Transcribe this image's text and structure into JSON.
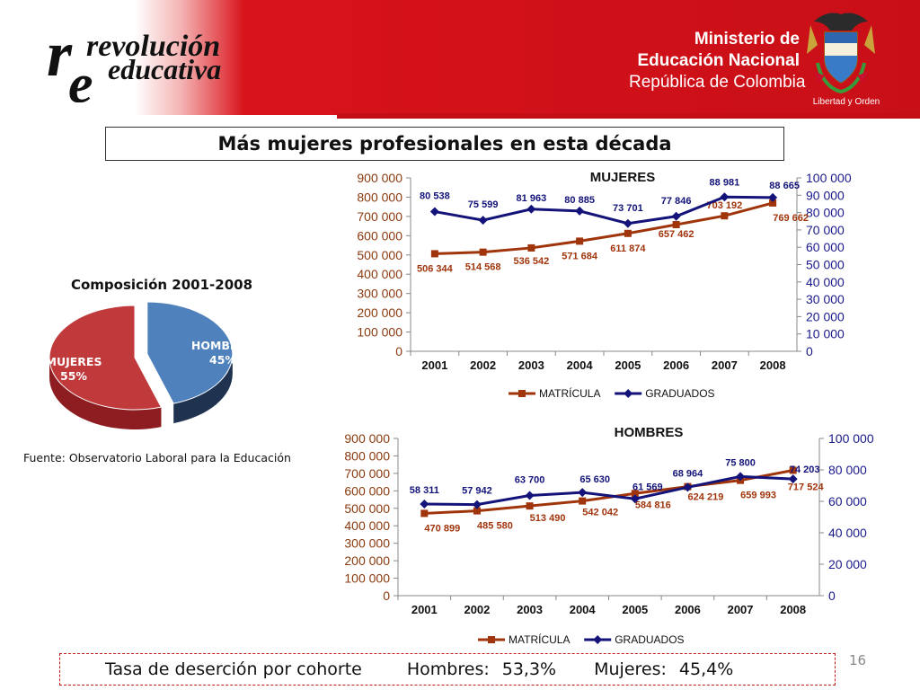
{
  "header": {
    "logo_name": "revolution-educativa-logo",
    "logo_lines": [
      "revolución",
      "educativa"
    ],
    "ministry": [
      "Ministerio de",
      "Educación Nacional",
      "República de Colombia"
    ],
    "motto": "Libertad y Orden",
    "colors": {
      "accent": "#c80f17"
    }
  },
  "title": "Más mujeres profesionales en esta década",
  "pie": {
    "title": "Composición 2001-2008",
    "slices": [
      {
        "label": "MUJERES",
        "pct_label": "55%",
        "value": 55,
        "color": "#c0393b",
        "side": "#8e1d22"
      },
      {
        "label": "HOMBRES",
        "pct_label": "45%",
        "value": 45,
        "color": "#4f81bd",
        "side": "#1f3350"
      }
    ]
  },
  "source": "Fuente: Observatorio Laboral para la Educación",
  "chart_data": [
    {
      "type": "line",
      "title": "MUJERES",
      "categories": [
        "2001",
        "2002",
        "2003",
        "2004",
        "2005",
        "2006",
        "2007",
        "2008"
      ],
      "y_left": {
        "min": 0,
        "max": 900000,
        "step": 100000,
        "ticks": [
          "0",
          "100 000",
          "200 000",
          "300 000",
          "400 000",
          "500 000",
          "600 000",
          "700 000",
          "800 000",
          "900 000"
        ],
        "color": "#8b3a0f"
      },
      "y_right": {
        "min": 0,
        "max": 100000,
        "step": 10000,
        "ticks": [
          "0",
          "10 000",
          "20 000",
          "30 000",
          "40 000",
          "50 000",
          "60 000",
          "70 000",
          "80 000",
          "90 000",
          "100 000"
        ],
        "color": "#1a1a8c"
      },
      "series": [
        {
          "name": "MATRÍCULA",
          "axis": "left",
          "color": "#a0350c",
          "marker": "square",
          "values": [
            506344,
            514568,
            536542,
            571684,
            611874,
            657462,
            703192,
            769662
          ],
          "labels": [
            "506 344",
            "514 568",
            "536 542",
            "571 684",
            "611 874",
            "657 462",
            "703 192",
            "769 662"
          ]
        },
        {
          "name": "GRADUADOS",
          "axis": "right",
          "color": "#13137a",
          "marker": "diamond",
          "values": [
            80538,
            75599,
            81963,
            80885,
            73701,
            77846,
            88981,
            88665
          ],
          "labels": [
            "80 538",
            "75 599",
            "81 963",
            "80 885",
            "73 701",
            "77 846",
            "88 981",
            "88 665"
          ]
        }
      ],
      "legend": "bottom"
    },
    {
      "type": "line",
      "title": "HOMBRES",
      "categories": [
        "2001",
        "2002",
        "2003",
        "2004",
        "2005",
        "2006",
        "2007",
        "2008"
      ],
      "y_left": {
        "min": 0,
        "max": 900000,
        "step": 100000,
        "ticks": [
          "0",
          "100 000",
          "200 000",
          "300 000",
          "400 000",
          "500 000",
          "600 000",
          "700 000",
          "800 000",
          "900 000"
        ],
        "color": "#8b3a0f"
      },
      "y_right": {
        "min": 0,
        "max": 100000,
        "step": 20000,
        "ticks": [
          "0",
          "20 000",
          "40 000",
          "60 000",
          "80 000",
          "100 000"
        ],
        "color": "#1a1a8c"
      },
      "series": [
        {
          "name": "MATRÍCULA",
          "axis": "left",
          "color": "#a0350c",
          "marker": "square",
          "values": [
            470899,
            485580,
            513490,
            542042,
            584816,
            624219,
            659993,
            717524
          ],
          "labels": [
            "470 899",
            "485 580",
            "513 490",
            "542 042",
            "584 816",
            "624 219",
            "659 993",
            "717 524"
          ]
        },
        {
          "name": "GRADUADOS",
          "axis": "right",
          "color": "#13137a",
          "marker": "diamond",
          "values": [
            58311,
            57942,
            63700,
            65630,
            61569,
            68964,
            75800,
            74203
          ],
          "labels": [
            "58 311",
            "57 942",
            "63 700",
            "65 630",
            "61 569",
            "68 964",
            "75 800",
            "74 203"
          ]
        }
      ],
      "legend": "bottom"
    }
  ],
  "footer": {
    "label": "Tasa de deserción por cohorte",
    "hombres_label": "Hombres:",
    "hombres_value": "53,3%",
    "mujeres_label": "Mujeres:",
    "mujeres_value": "45,4%"
  },
  "page_number": "16"
}
